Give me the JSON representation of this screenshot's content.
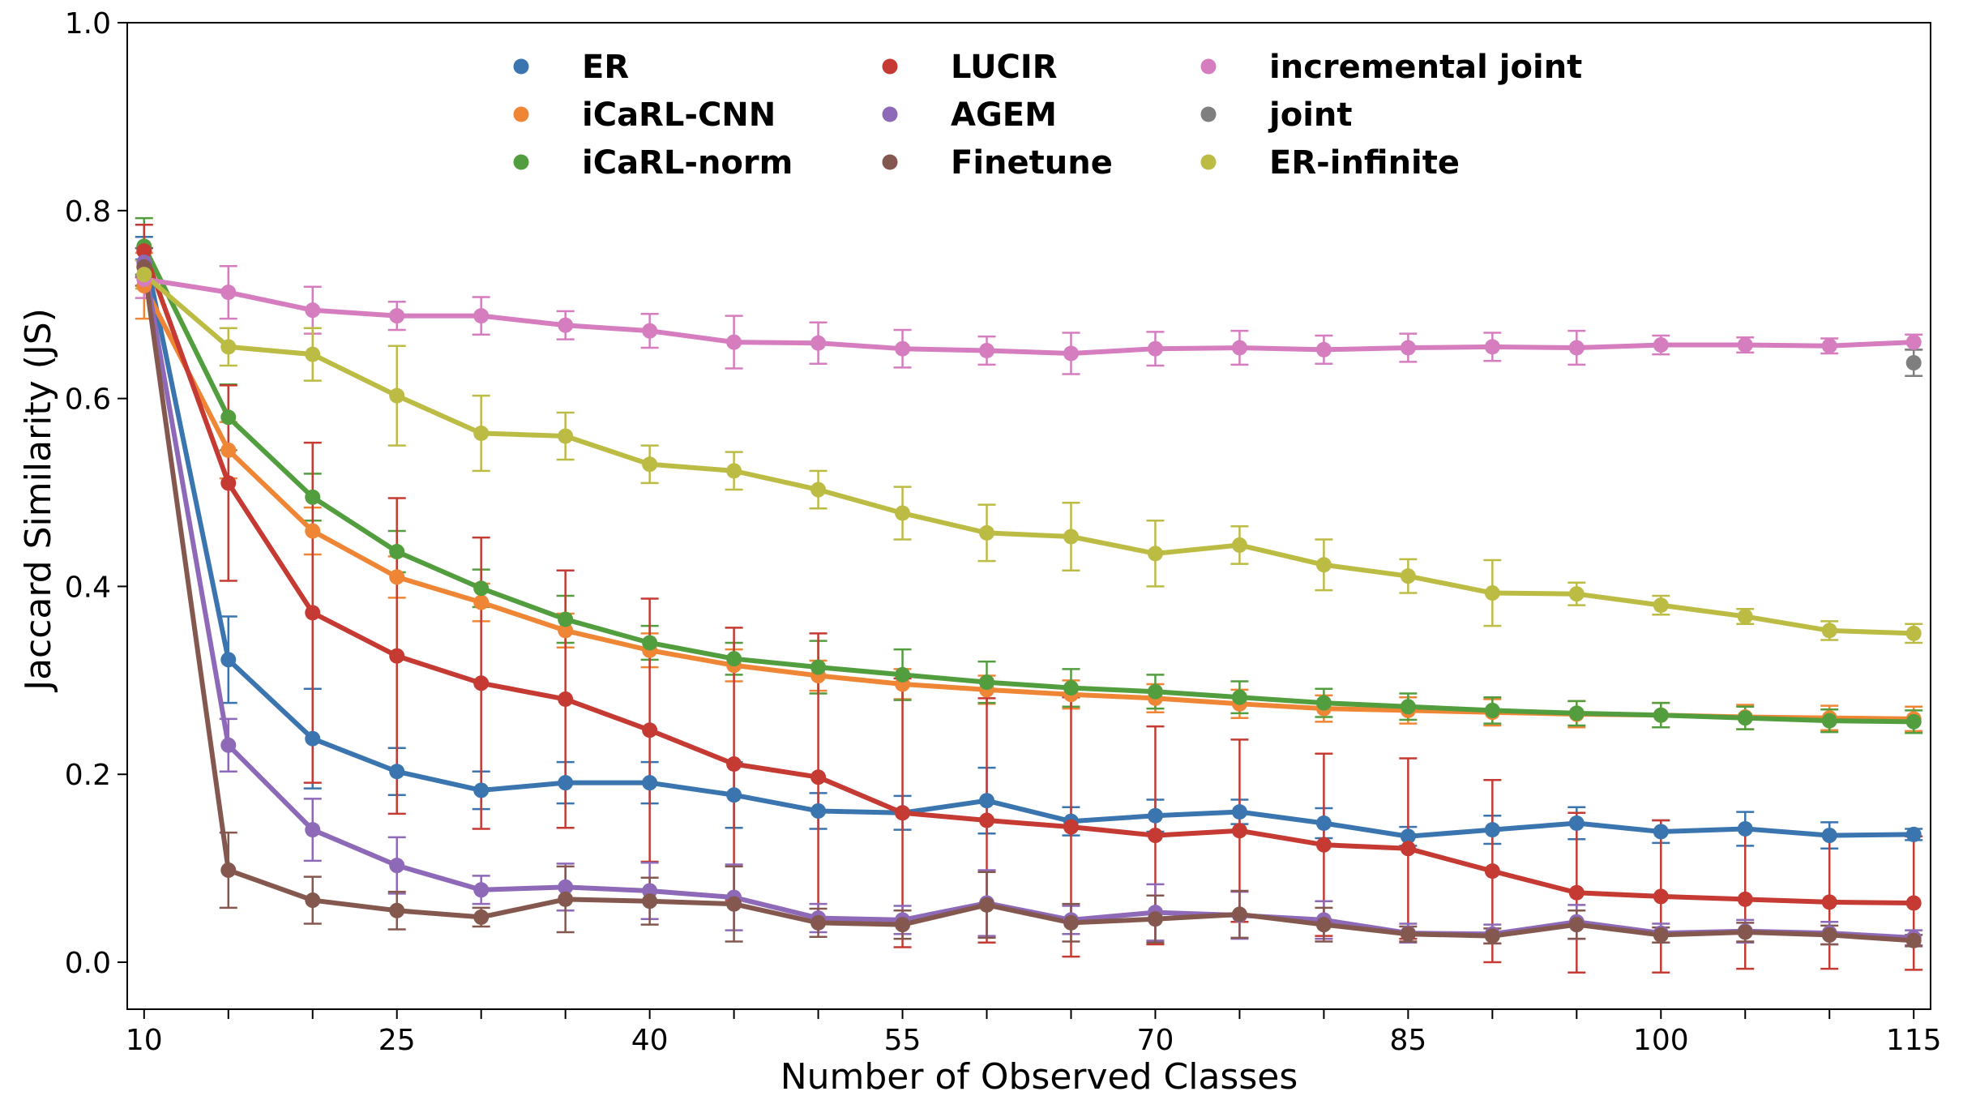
{
  "chart_data": {
    "type": "line",
    "title": "",
    "xlabel": "Number of Observed Classes",
    "ylabel": "Jaccard Similarity (JS)",
    "xlim": [
      9,
      116
    ],
    "ylim": [
      -0.05,
      1.0
    ],
    "grid": false,
    "legend_position": "top-center",
    "x_ticks": [
      10,
      15,
      20,
      25,
      30,
      35,
      40,
      45,
      50,
      55,
      60,
      65,
      70,
      75,
      80,
      85,
      90,
      95,
      100,
      105,
      110,
      115
    ],
    "x_tick_labels": [
      "10",
      "25",
      "40",
      "55",
      "70",
      "85",
      "100",
      "115"
    ],
    "x_tick_label_values": [
      10,
      25,
      40,
      55,
      70,
      85,
      100,
      115
    ],
    "y_ticks": [
      0.0,
      0.2,
      0.4,
      0.6,
      0.8,
      1.0
    ],
    "y_tick_labels": [
      "0.0",
      "0.2",
      "0.4",
      "0.6",
      "0.8",
      "1.0"
    ],
    "x": [
      10,
      15,
      20,
      25,
      30,
      35,
      40,
      45,
      50,
      55,
      60,
      65,
      70,
      75,
      80,
      85,
      90,
      95,
      100,
      105,
      110,
      115
    ],
    "series": [
      {
        "name": "ER",
        "color": "#3a75af",
        "values": [
          0.76,
          0.322,
          0.238,
          0.203,
          0.183,
          0.191,
          0.191,
          0.178,
          0.161,
          0.159,
          0.172,
          0.15,
          0.156,
          0.16,
          0.148,
          0.134,
          0.141,
          0.148,
          0.139,
          0.142,
          0.135,
          0.136
        ],
        "errors": [
          0.012,
          0.046,
          0.053,
          0.025,
          0.02,
          0.022,
          0.022,
          0.035,
          0.019,
          0.018,
          0.035,
          0.015,
          0.017,
          0.013,
          0.016,
          0.01,
          0.015,
          0.017,
          0.012,
          0.018,
          0.014,
          0.006
        ]
      },
      {
        "name": "iCaRL-CNN",
        "color": "#ef8636",
        "values": [
          0.72,
          0.545,
          0.459,
          0.41,
          0.383,
          0.353,
          0.332,
          0.316,
          0.305,
          0.296,
          0.29,
          0.285,
          0.281,
          0.275,
          0.27,
          0.268,
          0.266,
          0.264,
          0.263,
          0.261,
          0.26,
          0.259
        ],
        "errors": [
          0.035,
          0.03,
          0.025,
          0.022,
          0.02,
          0.018,
          0.018,
          0.017,
          0.016,
          0.016,
          0.015,
          0.015,
          0.015,
          0.015,
          0.014,
          0.014,
          0.014,
          0.014,
          0.013,
          0.013,
          0.013,
          0.013
        ]
      },
      {
        "name": "iCaRL-norm",
        "color": "#529e3f",
        "values": [
          0.762,
          0.58,
          0.495,
          0.437,
          0.398,
          0.365,
          0.34,
          0.323,
          0.314,
          0.306,
          0.298,
          0.292,
          0.288,
          0.282,
          0.276,
          0.272,
          0.268,
          0.265,
          0.263,
          0.26,
          0.257,
          0.256
        ],
        "errors": [
          0.03,
          0.035,
          0.025,
          0.022,
          0.02,
          0.025,
          0.018,
          0.017,
          0.028,
          0.027,
          0.022,
          0.02,
          0.018,
          0.017,
          0.015,
          0.014,
          0.014,
          0.013,
          0.013,
          0.012,
          0.012,
          0.012
        ]
      },
      {
        "name": "LUCIR",
        "color": "#c53a32",
        "values": [
          0.757,
          0.51,
          0.372,
          0.326,
          0.297,
          0.28,
          0.247,
          0.211,
          0.197,
          0.159,
          0.151,
          0.144,
          0.135,
          0.14,
          0.125,
          0.121,
          0.097,
          0.074,
          0.07,
          0.067,
          0.064,
          0.063
        ],
        "errors": [
          0.028,
          0.104,
          0.181,
          0.168,
          0.155,
          0.137,
          0.14,
          0.145,
          0.153,
          0.143,
          0.13,
          0.138,
          0.116,
          0.097,
          0.097,
          0.096,
          0.097,
          0.085,
          0.081,
          0.074,
          0.071,
          0.071
        ]
      },
      {
        "name": "AGEM",
        "color": "#8d69b8",
        "values": [
          0.745,
          0.231,
          0.141,
          0.103,
          0.077,
          0.08,
          0.076,
          0.069,
          0.047,
          0.045,
          0.063,
          0.045,
          0.053,
          0.05,
          0.045,
          0.031,
          0.03,
          0.043,
          0.031,
          0.033,
          0.031,
          0.026
        ],
        "errors": [
          0.015,
          0.028,
          0.033,
          0.03,
          0.015,
          0.025,
          0.03,
          0.035,
          0.015,
          0.015,
          0.035,
          0.015,
          0.03,
          0.025,
          0.02,
          0.01,
          0.01,
          0.018,
          0.01,
          0.012,
          0.012,
          0.008
        ]
      },
      {
        "name": "Finetune",
        "color": "#84584e",
        "values": [
          0.74,
          0.098,
          0.066,
          0.055,
          0.048,
          0.067,
          0.065,
          0.062,
          0.042,
          0.04,
          0.061,
          0.042,
          0.046,
          0.051,
          0.04,
          0.03,
          0.028,
          0.04,
          0.029,
          0.032,
          0.029,
          0.023
        ],
        "errors": [
          0.02,
          0.04,
          0.025,
          0.02,
          0.01,
          0.035,
          0.025,
          0.04,
          0.015,
          0.015,
          0.035,
          0.02,
          0.025,
          0.025,
          0.018,
          0.008,
          0.008,
          0.015,
          0.008,
          0.01,
          0.01,
          0.006
        ]
      },
      {
        "name": "incremental joint",
        "color": "#d57dbe",
        "values": [
          0.727,
          0.713,
          0.694,
          0.688,
          0.688,
          0.678,
          0.672,
          0.66,
          0.659,
          0.653,
          0.651,
          0.648,
          0.653,
          0.654,
          0.652,
          0.654,
          0.655,
          0.654,
          0.657,
          0.657,
          0.656,
          0.66
        ],
        "errors": [
          0.02,
          0.028,
          0.025,
          0.015,
          0.02,
          0.015,
          0.018,
          0.028,
          0.022,
          0.02,
          0.015,
          0.022,
          0.018,
          0.018,
          0.015,
          0.015,
          0.015,
          0.018,
          0.01,
          0.008,
          0.008,
          0.008
        ]
      },
      {
        "name": "joint",
        "color": "#7f7f7f",
        "x": [
          115
        ],
        "values": [
          0.638
        ],
        "errors": [
          0.014
        ]
      },
      {
        "name": "ER-infinite",
        "color": "#bcbc45",
        "values": [
          0.732,
          0.655,
          0.647,
          0.603,
          0.563,
          0.56,
          0.53,
          0.523,
          0.503,
          0.478,
          0.457,
          0.453,
          0.435,
          0.444,
          0.423,
          0.411,
          0.393,
          0.392,
          0.38,
          0.368,
          0.353,
          0.35
        ],
        "errors": [
          0.015,
          0.02,
          0.028,
          0.053,
          0.04,
          0.025,
          0.02,
          0.02,
          0.02,
          0.028,
          0.03,
          0.036,
          0.035,
          0.02,
          0.027,
          0.018,
          0.035,
          0.012,
          0.01,
          0.008,
          0.01,
          0.01
        ]
      }
    ]
  }
}
